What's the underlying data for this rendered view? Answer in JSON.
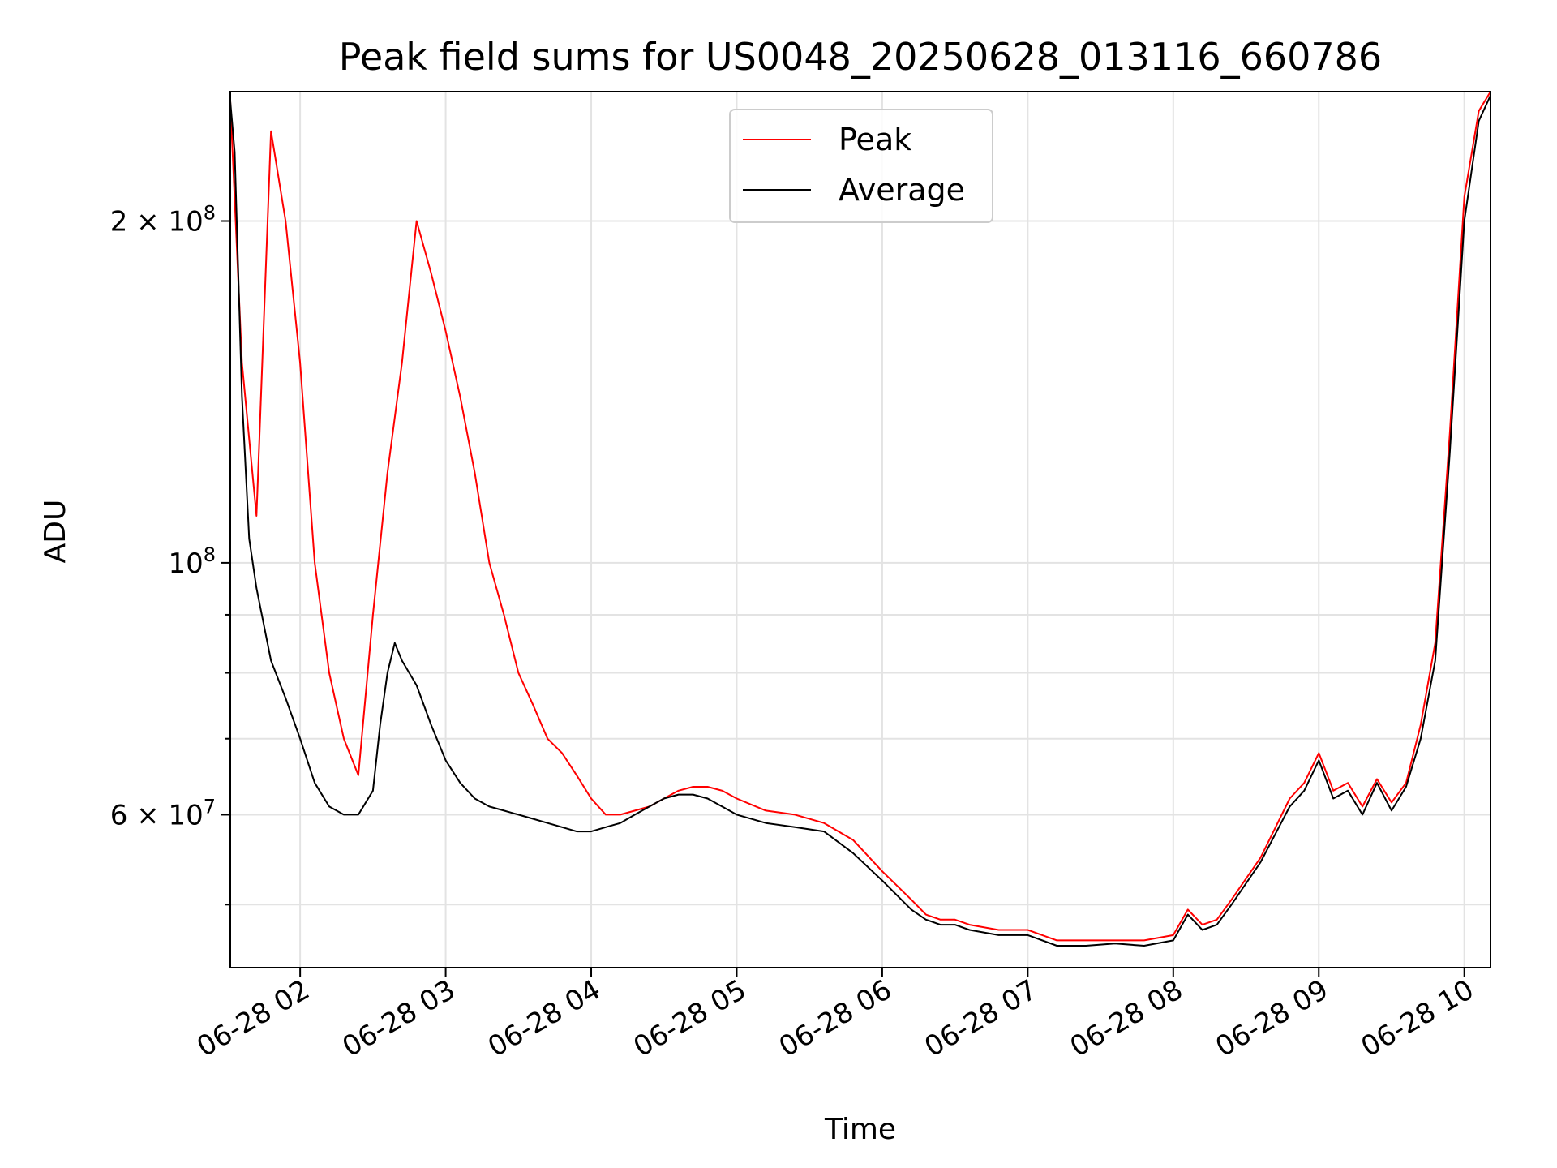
{
  "chart_data": {
    "type": "line",
    "title": "Peak field sums for US0048_20250628_013116_660786",
    "xlabel": "Time",
    "ylabel": "ADU",
    "yscale": "log",
    "grid": true,
    "legend": "upper-center",
    "xlim_hours": [
      1.52,
      10.18
    ],
    "ylim": [
      44000000,
      260000000
    ],
    "x_ticks": [
      {
        "hour": 2,
        "label": "06-28 02"
      },
      {
        "hour": 3,
        "label": "06-28 03"
      },
      {
        "hour": 4,
        "label": "06-28 04"
      },
      {
        "hour": 5,
        "label": "06-28 05"
      },
      {
        "hour": 6,
        "label": "06-28 06"
      },
      {
        "hour": 7,
        "label": "06-28 07"
      },
      {
        "hour": 8,
        "label": "06-28 08"
      },
      {
        "hour": 9,
        "label": "06-28 09"
      },
      {
        "hour": 10,
        "label": "06-28 10"
      }
    ],
    "y_major_ticks": [
      {
        "value": 60000000,
        "base": "6 × 10",
        "exp": "7"
      },
      {
        "value": 100000000,
        "base": "10",
        "exp": "8"
      },
      {
        "value": 200000000,
        "base": "2 × 10",
        "exp": "8"
      }
    ],
    "y_minor_ticks": [
      50000000,
      70000000,
      80000000,
      90000000
    ],
    "series": [
      {
        "name": "Peak",
        "color": "#ff0000",
        "x_hours": [
          1.52,
          1.6,
          1.7,
          1.8,
          1.9,
          2.0,
          2.1,
          2.2,
          2.3,
          2.4,
          2.5,
          2.6,
          2.7,
          2.8,
          2.9,
          3.0,
          3.1,
          3.2,
          3.3,
          3.4,
          3.5,
          3.6,
          3.7,
          3.8,
          3.9,
          4.0,
          4.1,
          4.2,
          4.3,
          4.4,
          4.5,
          4.6,
          4.7,
          4.8,
          4.9,
          5.0,
          5.2,
          5.4,
          5.6,
          5.8,
          6.0,
          6.2,
          6.3,
          6.4,
          6.5,
          6.6,
          6.8,
          7.0,
          7.2,
          7.4,
          7.6,
          7.8,
          8.0,
          8.1,
          8.2,
          8.3,
          8.4,
          8.6,
          8.8,
          8.9,
          9.0,
          9.1,
          9.2,
          9.3,
          9.4,
          9.5,
          9.6,
          9.7,
          9.8,
          9.9,
          10.0,
          10.1,
          10.18
        ],
        "values": [
          255000000,
          150000000,
          110000000,
          240000000,
          200000000,
          150000000,
          100000000,
          80000000,
          70000000,
          65000000,
          90000000,
          120000000,
          150000000,
          200000000,
          180000000,
          160000000,
          140000000,
          120000000,
          100000000,
          90000000,
          80000000,
          75000000,
          70000000,
          68000000,
          65000000,
          62000000,
          60000000,
          60000000,
          60500000,
          61000000,
          62000000,
          63000000,
          63500000,
          63500000,
          63000000,
          62000000,
          60500000,
          60000000,
          59000000,
          57000000,
          53500000,
          50500000,
          49000000,
          48500000,
          48500000,
          48000000,
          47500000,
          47500000,
          46500000,
          46500000,
          46500000,
          46500000,
          47000000,
          49500000,
          48000000,
          48500000,
          50500000,
          55000000,
          62000000,
          64000000,
          68000000,
          63000000,
          64000000,
          61000000,
          64500000,
          61500000,
          64000000,
          72000000,
          85000000,
          130000000,
          210000000,
          250000000,
          260000000
        ]
      },
      {
        "name": "Average",
        "color": "#000000",
        "x_hours": [
          1.52,
          1.55,
          1.6,
          1.65,
          1.7,
          1.8,
          1.9,
          2.0,
          2.1,
          2.2,
          2.3,
          2.4,
          2.5,
          2.55,
          2.6,
          2.65,
          2.7,
          2.8,
          2.9,
          3.0,
          3.1,
          3.2,
          3.3,
          3.4,
          3.5,
          3.6,
          3.7,
          3.8,
          3.9,
          4.0,
          4.1,
          4.2,
          4.3,
          4.4,
          4.5,
          4.6,
          4.7,
          4.8,
          4.9,
          5.0,
          5.2,
          5.4,
          5.6,
          5.8,
          6.0,
          6.2,
          6.3,
          6.4,
          6.5,
          6.6,
          6.8,
          7.0,
          7.2,
          7.4,
          7.6,
          7.8,
          8.0,
          8.1,
          8.2,
          8.3,
          8.4,
          8.6,
          8.8,
          8.9,
          9.0,
          9.1,
          9.2,
          9.3,
          9.4,
          9.5,
          9.6,
          9.7,
          9.8,
          9.9,
          10.0,
          10.1,
          10.18
        ],
        "values": [
          255000000,
          230000000,
          140000000,
          105000000,
          95000000,
          82000000,
          76000000,
          70000000,
          64000000,
          61000000,
          60000000,
          60000000,
          63000000,
          72000000,
          80000000,
          85000000,
          82000000,
          78000000,
          72000000,
          67000000,
          64000000,
          62000000,
          61000000,
          60500000,
          60000000,
          59500000,
          59000000,
          58500000,
          58000000,
          58000000,
          58500000,
          59000000,
          60000000,
          61000000,
          62000000,
          62500000,
          62500000,
          62000000,
          61000000,
          60000000,
          59000000,
          58500000,
          58000000,
          55500000,
          52500000,
          49500000,
          48500000,
          48000000,
          48000000,
          47500000,
          47000000,
          47000000,
          46000000,
          46000000,
          46200000,
          46000000,
          46500000,
          49000000,
          47500000,
          48000000,
          50000000,
          54500000,
          61000000,
          63000000,
          67000000,
          62000000,
          63000000,
          60000000,
          64000000,
          60500000,
          63500000,
          70000000,
          82000000,
          125000000,
          200000000,
          245000000,
          258000000
        ]
      }
    ]
  }
}
